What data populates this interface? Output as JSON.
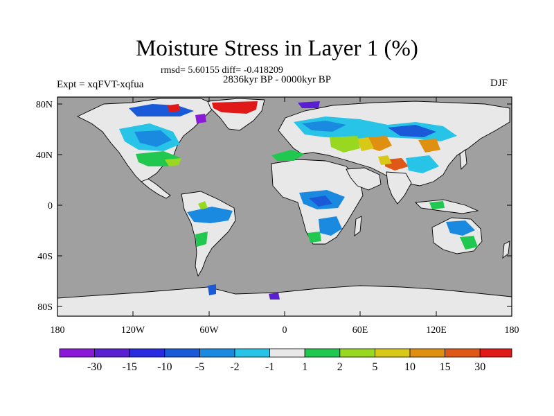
{
  "title": "Moisture Stress in Layer 1 (%)",
  "stats": "rmsd= 5.60155 diff= -0.418209",
  "period": "2836kyr BP - 0000kyr BP",
  "experiment": "Expt = xqFVT-xqfua",
  "season": "DJF",
  "map": {
    "ocean_color": "#a0a0a0",
    "land_color": "#e8e8e8",
    "lon_ticks": [
      "180",
      "120W",
      "60W",
      "0",
      "60E",
      "120E",
      "180"
    ],
    "lat_ticks": [
      "80N",
      "40N",
      "0",
      "40S",
      "80S"
    ]
  },
  "colorbar": {
    "colors": [
      "#8a1ad8",
      "#5a1fd0",
      "#2a2ae0",
      "#1a5ad8",
      "#1a8ae0",
      "#28c4e8",
      "#e8e8e8",
      "#20c850",
      "#98d820",
      "#d8c818",
      "#e09010",
      "#e05818",
      "#e01818"
    ],
    "labels": [
      "-30",
      "-15",
      "-10",
      "-5",
      "-2",
      "-1",
      "1",
      "2",
      "5",
      "10",
      "15",
      "30"
    ]
  }
}
